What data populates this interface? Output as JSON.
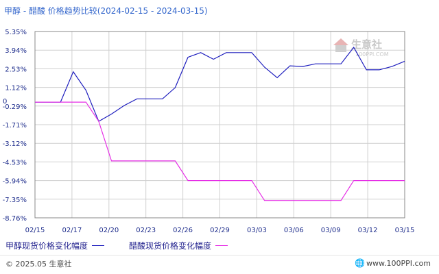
{
  "title": "甲醇 - 醋酸 价格趋势比较(2024-02-15 - 2024-03-15)",
  "watermark": {
    "text": "生意社",
    "url": "100PPI.COM"
  },
  "legend": [
    {
      "label": "甲醇现货价格变化幅度",
      "color": "#1e1ebe"
    },
    {
      "label": "醋酸现货价格变化幅度",
      "color": "#e62ee6"
    }
  ],
  "footer": {
    "left": "© 2025.05 生意社",
    "right": "www.100PPI.com"
  },
  "colors": {
    "axis": "#1e2d8c",
    "grid": "#cfcfcf"
  },
  "chart_data": {
    "type": "line",
    "title": "甲醇 - 醋酸 价格趋势比较(2024-02-15 - 2024-03-15)",
    "xlabel": "",
    "ylabel": "",
    "x_ticks": [
      "02/15",
      "02/17",
      "02/20",
      "02/23",
      "02/26",
      "02/29",
      "03/03",
      "03/06",
      "03/09",
      "03/12",
      "03/15"
    ],
    "y_ticks": [
      "5.35%",
      "3.94%",
      "2.53%",
      "1.12%",
      "-0.29%",
      "-1.71%",
      "-3.12%",
      "-4.53%",
      "-5.94%",
      "-7.35%",
      "-8.76%"
    ],
    "y_zero_label": "0",
    "ylim": [
      -8.76,
      5.35
    ],
    "grid": true,
    "x_dates": [
      "02/15",
      "02/16",
      "02/17",
      "02/18",
      "02/19",
      "02/20",
      "02/21",
      "02/22",
      "02/23",
      "02/24",
      "02/25",
      "02/26",
      "02/27",
      "02/28",
      "02/29",
      "03/01",
      "03/02",
      "03/03",
      "03/04",
      "03/05",
      "03/06",
      "03/07",
      "03/08",
      "03/09",
      "03/10",
      "03/11",
      "03/12",
      "03/13",
      "03/14",
      "03/15"
    ],
    "series": [
      {
        "name": "甲醇现货价格变化幅度",
        "color": "#1e1ebe",
        "values": [
          0.0,
          0.0,
          0.0,
          2.3,
          0.9,
          -1.45,
          -0.9,
          -0.25,
          0.25,
          0.25,
          0.25,
          1.1,
          3.4,
          3.75,
          3.25,
          3.75,
          3.75,
          3.75,
          2.65,
          1.85,
          2.75,
          2.7,
          2.9,
          2.9,
          2.9,
          4.15,
          2.45,
          2.45,
          2.7,
          3.1
        ]
      },
      {
        "name": "醋酸现货价格变化幅度",
        "color": "#e62ee6",
        "values": [
          0.0,
          0.0,
          0.0,
          0.0,
          0.0,
          -1.45,
          -4.45,
          -4.45,
          -4.45,
          -4.45,
          -4.45,
          -4.45,
          -5.94,
          -5.94,
          -5.94,
          -5.94,
          -5.94,
          -5.94,
          -7.45,
          -7.45,
          -7.45,
          -7.45,
          -7.45,
          -7.45,
          -7.45,
          -5.94,
          -5.94,
          -5.94,
          -5.94,
          -5.94
        ]
      }
    ]
  }
}
